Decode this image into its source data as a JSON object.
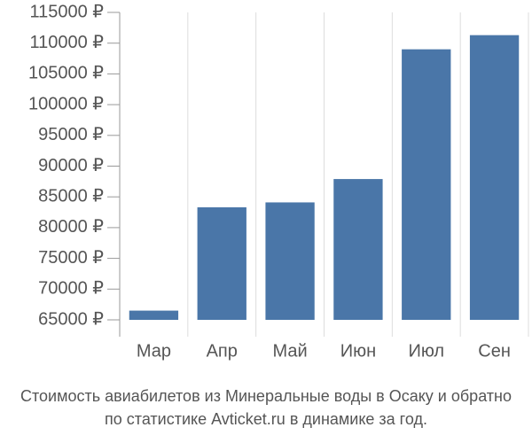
{
  "chart_data": {
    "type": "bar",
    "title_lines": [
      "Стоимость авиабилетов из Минеральные воды в Осаку и обратно",
      "по статистике Avticket.ru в динамике за год."
    ],
    "categories": [
      "Мар",
      "Апр",
      "Май",
      "Июн",
      "Июл",
      "Сен"
    ],
    "values": [
      66500,
      83300,
      84100,
      87900,
      109000,
      111300
    ],
    "color": "#4a76a8",
    "ylim": [
      65000,
      115000
    ],
    "yticks": [
      {
        "value": 65000,
        "label": "65000 ₽"
      },
      {
        "value": 70000,
        "label": "70000 ₽"
      },
      {
        "value": 75000,
        "label": "75000 ₽"
      },
      {
        "value": 80000,
        "label": "80000 ₽"
      },
      {
        "value": 85000,
        "label": "85000 ₽"
      },
      {
        "value": 90000,
        "label": "90000 ₽"
      },
      {
        "value": 95000,
        "label": "95000 ₽"
      },
      {
        "value": 100000,
        "label": "100000 ₽"
      },
      {
        "value": 105000,
        "label": "105000 ₽"
      },
      {
        "value": 110000,
        "label": "110000 ₽"
      },
      {
        "value": 115000,
        "label": "115000 ₽"
      }
    ],
    "grid": true
  }
}
